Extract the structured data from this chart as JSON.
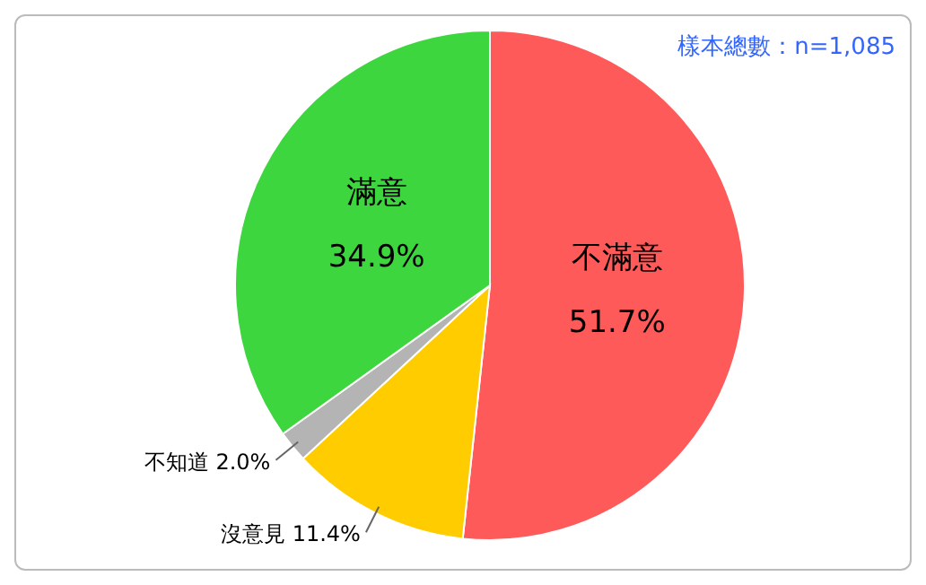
{
  "chart_data": {
    "type": "pie",
    "categories": [
      "不滿意",
      "沒意見",
      "不知道",
      "滿意"
    ],
    "values": [
      51.7,
      11.4,
      2.0,
      34.9
    ],
    "colors": [
      "#fe5a5a",
      "#ffcc00",
      "#b4b4b4",
      "#3ed63e"
    ],
    "value_labels": [
      "51.7%",
      "11.4%",
      "2.0%",
      "34.9%"
    ],
    "legend": false,
    "annotations": [
      "樣本總數：n=1,085"
    ]
  }
}
